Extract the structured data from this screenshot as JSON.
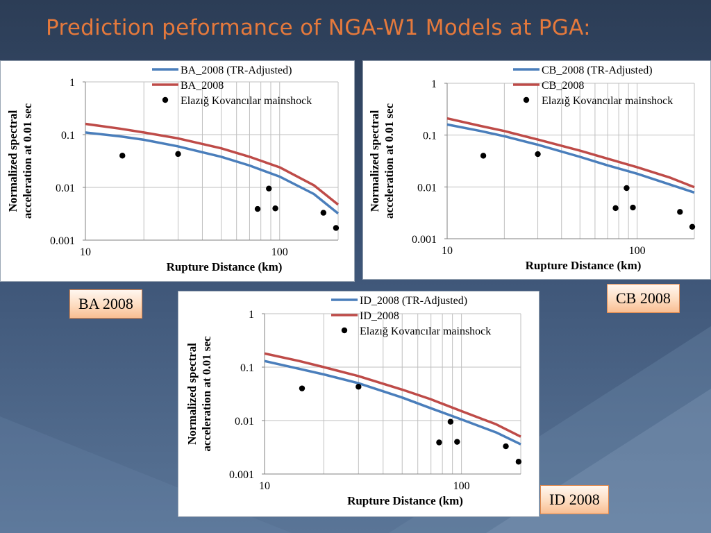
{
  "title": "Prediction peformance of NGA-W1 Models at PGA:",
  "colors": {
    "blue": "#4a7ebb",
    "red": "#be4b48",
    "title": "#e5793c"
  },
  "chart_data": [
    {
      "type": "line",
      "panel_label": "BA 2008",
      "xlabel": "Rupture Distance (km)",
      "ylabel": [
        "Normalized spectral",
        "acceleration at 0.01 sec"
      ],
      "xscale": "log",
      "yscale": "log",
      "xlim": [
        10,
        200
      ],
      "ylim": [
        0.001,
        1
      ],
      "x_ticks": [
        "10",
        "100"
      ],
      "y_ticks": [
        "0.001",
        "0.01",
        "0.1",
        "1"
      ],
      "grid": true,
      "legend_position": "top-right",
      "series": [
        {
          "name": "BA_2008 (TR-Adjusted)",
          "style": "line",
          "color": "#4a7ebb",
          "x": [
            10,
            15,
            20,
            30,
            50,
            70,
            100,
            150,
            200
          ],
          "y": [
            0.11,
            0.093,
            0.08,
            0.06,
            0.038,
            0.026,
            0.016,
            0.0075,
            0.0032
          ]
        },
        {
          "name": "BA_2008",
          "style": "line",
          "color": "#be4b48",
          "x": [
            10,
            15,
            20,
            30,
            50,
            70,
            100,
            150,
            200
          ],
          "y": [
            0.16,
            0.13,
            0.11,
            0.085,
            0.055,
            0.038,
            0.024,
            0.011,
            0.0047
          ]
        },
        {
          "name": "Elazığ Kovancılar mainshock",
          "style": "points",
          "color": "#000000",
          "x": [
            15.5,
            30,
            77,
            88,
            95,
            168,
            195
          ],
          "y": [
            0.04,
            0.043,
            0.0039,
            0.0095,
            0.004,
            0.0033,
            0.0017
          ]
        }
      ]
    },
    {
      "type": "line",
      "panel_label": "CB 2008",
      "xlabel": "Rupture Distance (km)",
      "ylabel": [
        "Normalized spectral",
        "acceleration at 0.01 sec"
      ],
      "xscale": "log",
      "yscale": "log",
      "xlim": [
        10,
        200
      ],
      "ylim": [
        0.001,
        1
      ],
      "x_ticks": [
        "10",
        "100"
      ],
      "y_ticks": [
        "0.001",
        "0.01",
        "0.1",
        "1"
      ],
      "grid": true,
      "legend_position": "top-right",
      "series": [
        {
          "name": "CB_2008 (TR-Adjusted)",
          "style": "line",
          "color": "#4a7ebb",
          "x": [
            10,
            15,
            20,
            30,
            50,
            70,
            100,
            150,
            200
          ],
          "y": [
            0.16,
            0.12,
            0.095,
            0.065,
            0.038,
            0.026,
            0.018,
            0.011,
            0.0078
          ]
        },
        {
          "name": "CB_2008",
          "style": "line",
          "color": "#be4b48",
          "x": [
            10,
            15,
            20,
            30,
            50,
            70,
            100,
            150,
            200
          ],
          "y": [
            0.21,
            0.15,
            0.12,
            0.082,
            0.05,
            0.035,
            0.024,
            0.015,
            0.0099
          ]
        },
        {
          "name": "Elazığ Kovancılar mainshock",
          "style": "points",
          "color": "#000000",
          "x": [
            15.5,
            30,
            77,
            88,
            95,
            168,
            195
          ],
          "y": [
            0.04,
            0.043,
            0.0039,
            0.0095,
            0.004,
            0.0033,
            0.0017
          ]
        }
      ]
    },
    {
      "type": "line",
      "panel_label": "ID 2008",
      "xlabel": "Rupture Distance (km)",
      "ylabel": [
        "Normalized spectral",
        "acceleration at 0.01 sec"
      ],
      "xscale": "log",
      "yscale": "log",
      "xlim": [
        10,
        200
      ],
      "ylim": [
        0.001,
        1
      ],
      "x_ticks": [
        "10",
        "100"
      ],
      "y_ticks": [
        "0.001",
        "0.01",
        "0.1",
        "1"
      ],
      "grid": true,
      "legend_position": "top-right",
      "series": [
        {
          "name": "ID_2008 (TR-Adjusted)",
          "style": "line",
          "color": "#4a7ebb",
          "x": [
            10,
            15,
            20,
            30,
            50,
            70,
            100,
            150,
            200
          ],
          "y": [
            0.13,
            0.093,
            0.073,
            0.05,
            0.027,
            0.017,
            0.0105,
            0.006,
            0.0036
          ]
        },
        {
          "name": "ID_2008",
          "style": "line",
          "color": "#be4b48",
          "x": [
            10,
            15,
            20,
            30,
            50,
            70,
            100,
            150,
            200
          ],
          "y": [
            0.18,
            0.13,
            0.1,
            0.068,
            0.038,
            0.025,
            0.015,
            0.0085,
            0.005
          ]
        },
        {
          "name": "Elazığ Kovancılar mainshock",
          "style": "points",
          "color": "#000000",
          "x": [
            15.5,
            30,
            77,
            88,
            95,
            168,
            195
          ],
          "y": [
            0.04,
            0.043,
            0.0039,
            0.0095,
            0.004,
            0.0033,
            0.0017
          ]
        }
      ]
    }
  ]
}
